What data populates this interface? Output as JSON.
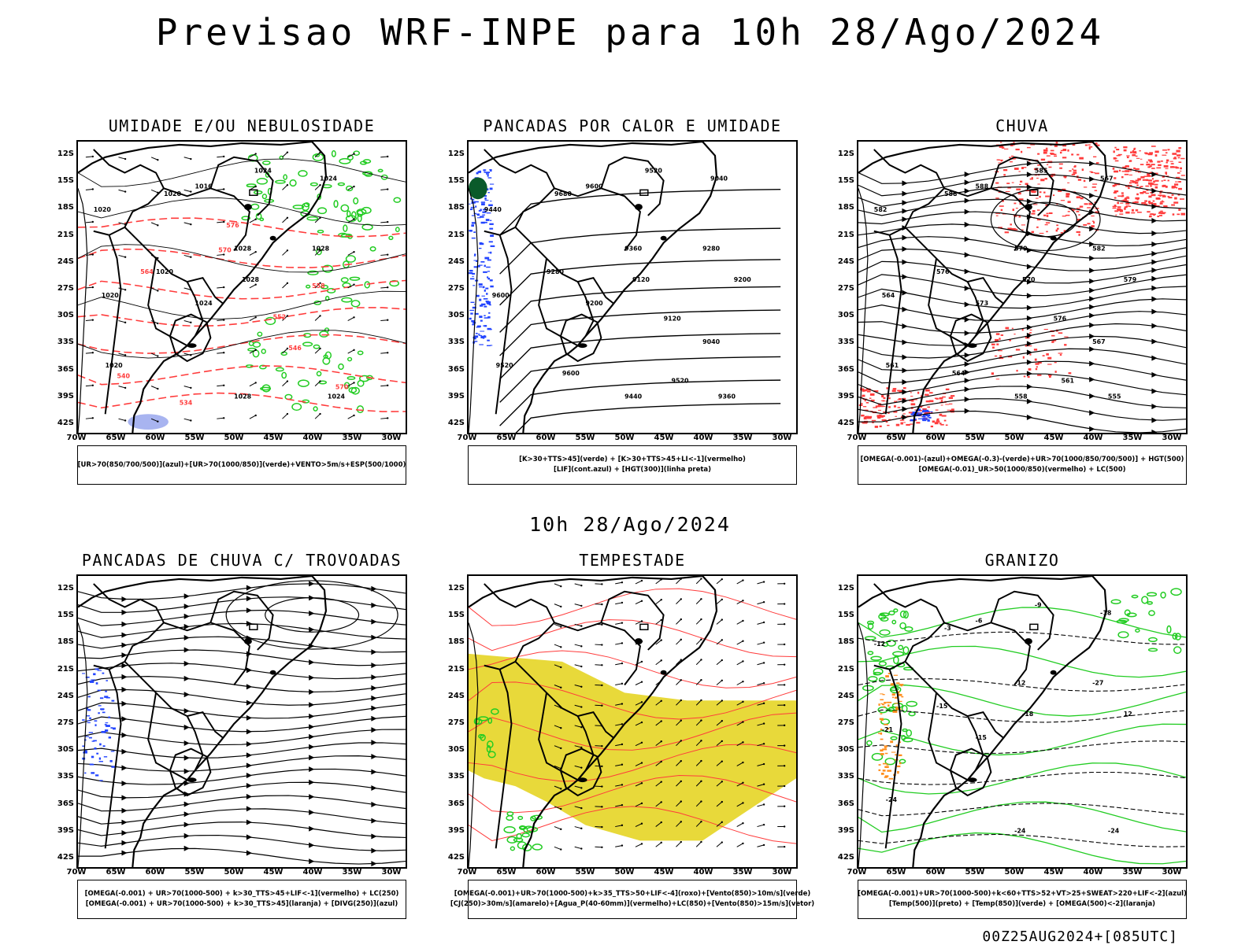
{
  "title": "Previsao WRF-INPE  para 10h 28/Ago/2024",
  "subtitle": "10h 28/Ago/2024",
  "footer": "00Z25AUG2024+[085UTC]",
  "lat_labels": [
    "12S",
    "15S",
    "18S",
    "21S",
    "24S",
    "27S",
    "30S",
    "33S",
    "36S",
    "39S",
    "42S"
  ],
  "lon_labels": [
    "70W",
    "65W",
    "60W",
    "55W",
    "50W",
    "45W",
    "40W",
    "35W",
    "30W"
  ],
  "colors": {
    "green": "#22cc22",
    "red": "#ff3b3b",
    "blue": "#2244ff",
    "yellow": "#e8d93a",
    "orange": "#ff8c1a",
    "lavender": "#a8b4f0"
  },
  "panels": [
    {
      "id": "umidade",
      "title": "UMIDADE E/OU NEBULOSIDADE",
      "legend": [
        "[UR>70(850/700/500)](azul)+[UR>70(1000/850)](verde)+VENTO>5m/s+ESP(500/1000)"
      ],
      "contour_labels": [
        "1020",
        "1016",
        "1024",
        "1020",
        "1028",
        "1020",
        "1024",
        "1028",
        "1024",
        "1020",
        "1020",
        "1028",
        "1024",
        "1028"
      ],
      "red_labels": [
        "570",
        "576",
        "564",
        "558",
        "552",
        "546",
        "540",
        "534",
        "570"
      ]
    },
    {
      "id": "pancadas_calor",
      "title": "PANCADAS POR CALOR E UMIDADE",
      "legend": [
        "[K>30+TTS>45](verde) + [K>30+TTS>45+LI<-1](vermelho)",
        "[LIF](cont.azul) + [HGT(300)](linha preta)"
      ],
      "contour_labels": [
        "9680",
        "9600",
        "9520",
        "9440",
        "9360",
        "9280",
        "9200",
        "9120",
        "9040",
        "9600",
        "9520",
        "9440",
        "9360",
        "9280",
        "9200",
        "9120",
        "9040",
        "9600",
        "9520"
      ]
    },
    {
      "id": "chuva",
      "title": "CHUVA",
      "legend": [
        "[OMEGA(-0.001)-(azul)+OMEGA(-0.3)-(verde)+UR>70(1000/850/700/500)] + HGT(500)",
        "[OMEGA(-0.01)_UR>50(1000/850)(vermelho) + LC(500)"
      ],
      "contour_labels": [
        "588",
        "588",
        "585",
        "582",
        "579",
        "576",
        "573",
        "570",
        "567",
        "564",
        "561",
        "558",
        "555",
        "582",
        "579",
        "576",
        "567",
        "564",
        "561"
      ]
    },
    {
      "id": "pancadas_trovoadas",
      "title": "PANCADAS DE CHUVA C/ TROVOADAS",
      "legend": [
        "[OMEGA(-0.001) + UR>70(1000-500) + k>30_TTS>45+LIF<-1](vermelho) + LC(250)",
        "[OMEGA(-0.001) + UR>70(1000-500) + k>30_TTS>45](laranja) + [DIVG(250)](azul)"
      ]
    },
    {
      "id": "tempestade",
      "title": "TEMPESTADE",
      "legend": [
        "[OMEGA(-0.001)+UR>70(1000-500)+k>35_TTS>50+LIF<-4](roxo)+[Vento(850)>10m/s](verde)",
        "[CJ(250)>30m/s](amarelo)+[Agua_P(40-60mm)](vermelho)+LC(850)+[Vento(850)>15m/s](vetor)"
      ]
    },
    {
      "id": "granizo",
      "title": "GRANIZO",
      "legend": [
        "[OMEGA(-0.001)+UR>70(1000-500)+k<60+TTS>52+VT>25+SWEAT>220+LIF<-2](azul)",
        "[Temp(500)](preto) + [Temp(850)](verde) + [OMEGA(500)<-2](laranja)"
      ],
      "contour_labels": [
        "-3",
        "-6",
        "-9",
        "-12",
        "-12",
        "-15",
        "-15",
        "-18",
        "-18",
        "-21",
        "-24",
        "-24",
        "-24",
        "-27",
        "12"
      ]
    }
  ]
}
